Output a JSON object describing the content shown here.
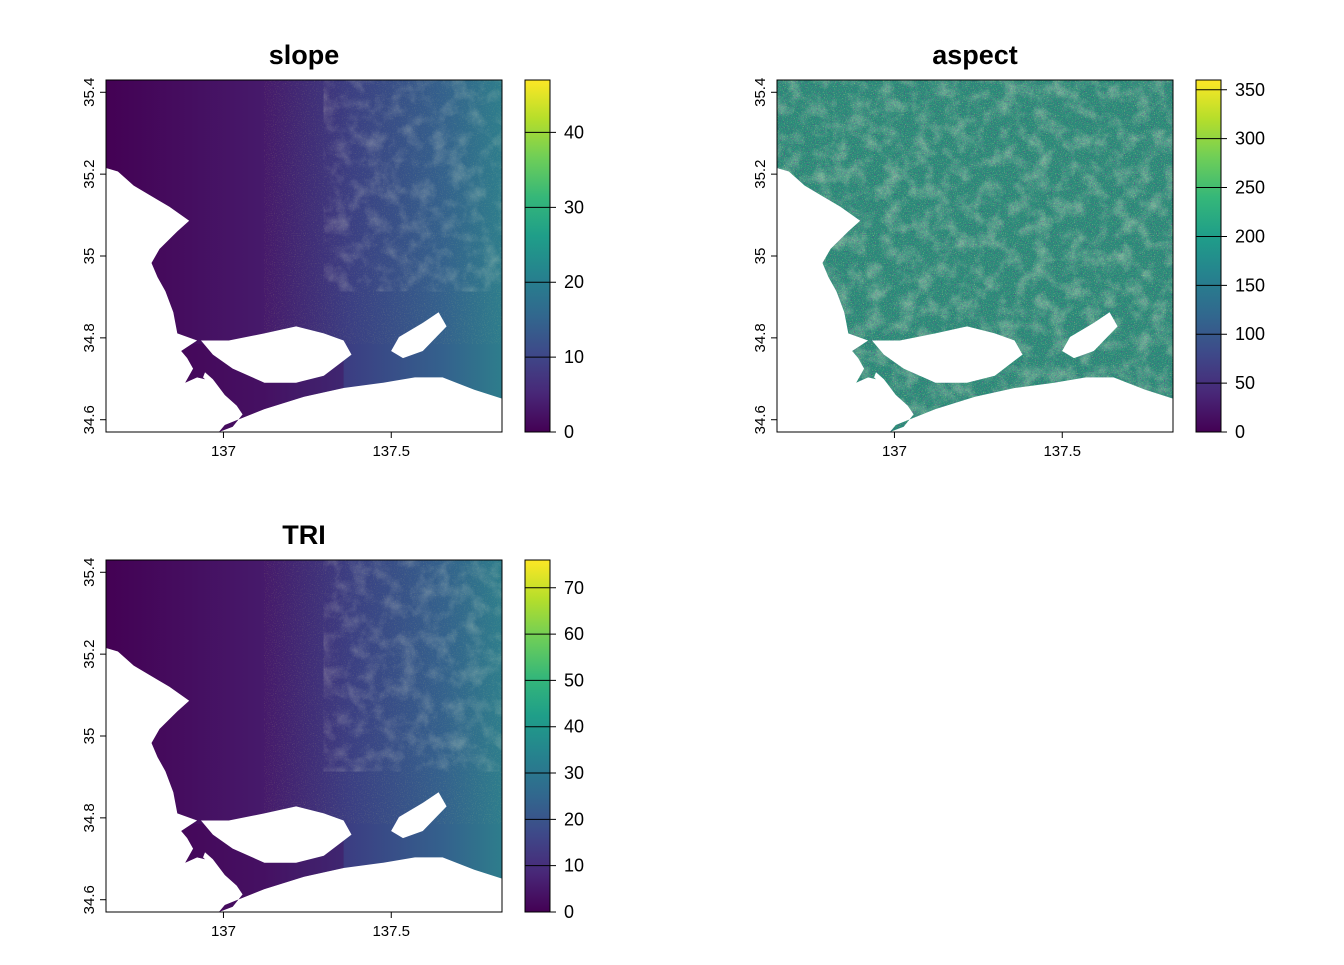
{
  "figure": {
    "colormap": [
      "#440154",
      "#482878",
      "#3e4989",
      "#31688e",
      "#26828e",
      "#1f9e89",
      "#35b779",
      "#6ece58",
      "#b5de2b",
      "#fde725"
    ],
    "panels": [
      {
        "id": "slope",
        "title": "slope",
        "x_ticks": [
          {
            "value": 137,
            "label": "137"
          },
          {
            "value": 137.5,
            "label": "137.5"
          }
        ],
        "y_ticks": [
          {
            "value": 34.6,
            "label": "34.6"
          },
          {
            "value": 34.8,
            "label": "34.8"
          },
          {
            "value": 35,
            "label": "35"
          },
          {
            "value": 35.2,
            "label": "35.2"
          },
          {
            "value": 35.4,
            "label": "35.4"
          }
        ],
        "x_range": [
          136.65,
          137.83
        ],
        "y_range": [
          34.57,
          35.43
        ],
        "legend_range": [
          0,
          47
        ],
        "legend_ticks": [
          {
            "value": 0,
            "label": "0"
          },
          {
            "value": 10,
            "label": "10"
          },
          {
            "value": 20,
            "label": "20"
          },
          {
            "value": 30,
            "label": "30"
          },
          {
            "value": 40,
            "label": "40"
          }
        ],
        "texture": "smooth"
      },
      {
        "id": "aspect",
        "title": "aspect",
        "x_ticks": [
          {
            "value": 137,
            "label": "137"
          },
          {
            "value": 137.5,
            "label": "137.5"
          }
        ],
        "y_ticks": [
          {
            "value": 34.6,
            "label": "34.6"
          },
          {
            "value": 34.8,
            "label": "34.8"
          },
          {
            "value": 35,
            "label": "35"
          },
          {
            "value": 35.2,
            "label": "35.2"
          },
          {
            "value": 35.4,
            "label": "35.4"
          }
        ],
        "x_range": [
          136.65,
          137.83
        ],
        "y_range": [
          34.57,
          35.43
        ],
        "legend_range": [
          0,
          360
        ],
        "legend_ticks": [
          {
            "value": 0,
            "label": "0"
          },
          {
            "value": 50,
            "label": "50"
          },
          {
            "value": 100,
            "label": "100"
          },
          {
            "value": 150,
            "label": "150"
          },
          {
            "value": 200,
            "label": "200"
          },
          {
            "value": 250,
            "label": "250"
          },
          {
            "value": 300,
            "label": "300"
          },
          {
            "value": 350,
            "label": "350"
          }
        ],
        "texture": "noisy"
      },
      {
        "id": "tri",
        "title": "TRI",
        "x_ticks": [
          {
            "value": 137,
            "label": "137"
          },
          {
            "value": 137.5,
            "label": "137.5"
          }
        ],
        "y_ticks": [
          {
            "value": 34.6,
            "label": "34.6"
          },
          {
            "value": 34.8,
            "label": "34.8"
          },
          {
            "value": 35,
            "label": "35"
          },
          {
            "value": 35.2,
            "label": "35.2"
          },
          {
            "value": 35.4,
            "label": "35.4"
          }
        ],
        "x_range": [
          136.65,
          137.83
        ],
        "y_range": [
          34.57,
          35.43
        ],
        "legend_range": [
          0,
          76
        ],
        "legend_ticks": [
          {
            "value": 0,
            "label": "0"
          },
          {
            "value": 10,
            "label": "10"
          },
          {
            "value": 20,
            "label": "20"
          },
          {
            "value": 30,
            "label": "30"
          },
          {
            "value": 40,
            "label": "40"
          },
          {
            "value": 50,
            "label": "50"
          },
          {
            "value": 60,
            "label": "60"
          },
          {
            "value": 70,
            "label": "70"
          }
        ],
        "texture": "smooth"
      }
    ]
  }
}
